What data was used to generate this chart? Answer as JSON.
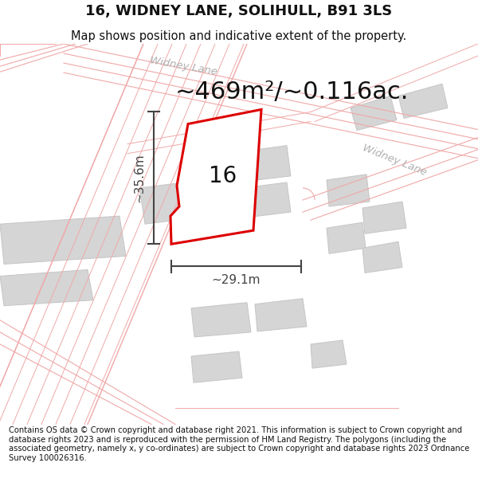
{
  "title": "16, WIDNEY LANE, SOLIHULL, B91 3LS",
  "subtitle": "Map shows position and indicative extent of the property.",
  "area_text": "~469m²/~0.116ac.",
  "label_16": "16",
  "dim_width": "~29.1m",
  "dim_height": "~35.6m",
  "footer_text": "Contains OS data © Crown copyright and database right 2021. This information is subject to Crown copyright and database rights 2023 and is reproduced with the permission of HM Land Registry. The polygons (including the associated geometry, namely x, y co-ordinates) are subject to Crown copyright and database rights 2023 Ordnance Survey 100026316.",
  "road_line_color": "#f0a0a0",
  "road_fill_color": "#fdf0f0",
  "building_color": "#d8d8d8",
  "building_stroke": "#c0c0c0",
  "plot_fill": "#ffffff",
  "plot_stroke": "#dd0000",
  "dim_color": "#444444",
  "street_label_color": "#b0b0b0",
  "title_fontsize": 13,
  "subtitle_fontsize": 10.5,
  "area_fontsize": 22,
  "label_fontsize": 20,
  "dim_fontsize": 11,
  "footer_fontsize": 7.2,
  "street_fontsize": 9.5
}
